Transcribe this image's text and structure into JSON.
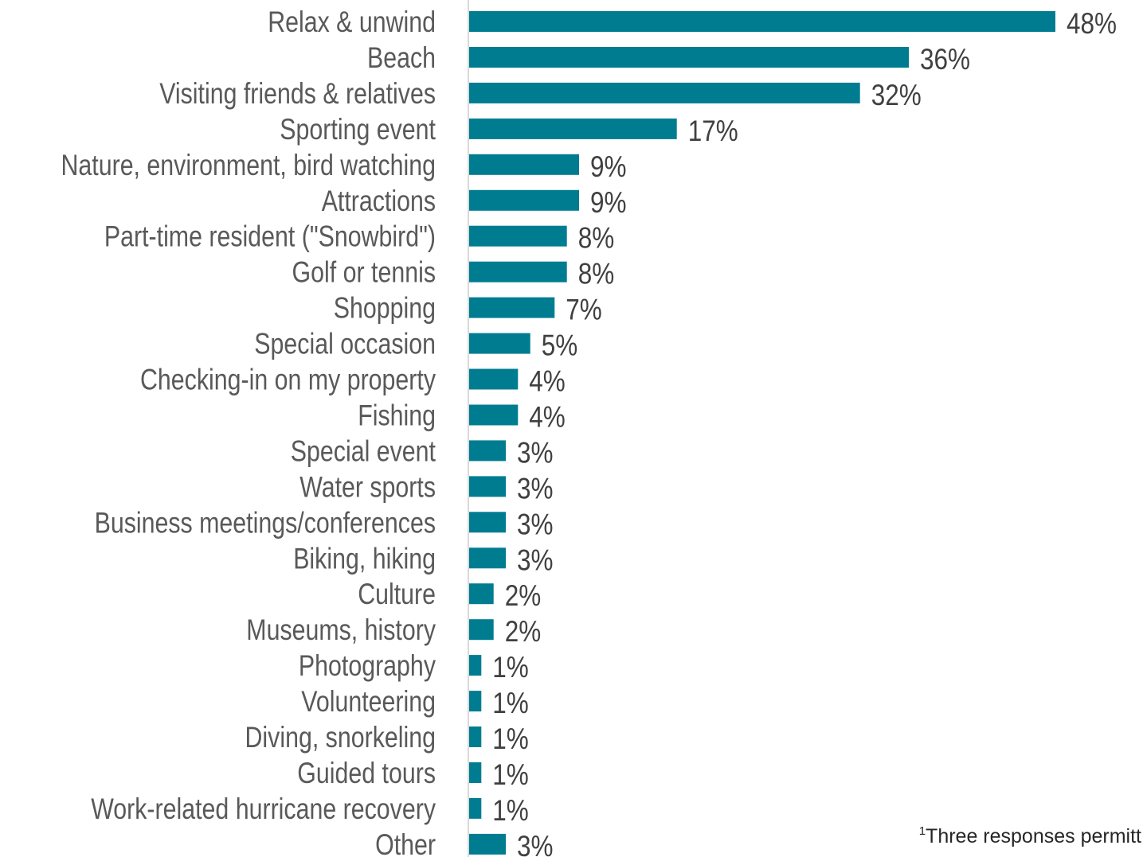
{
  "chart_data": {
    "type": "bar",
    "orientation": "horizontal",
    "categories": [
      "Relax & unwind",
      "Beach",
      "Visiting friends & relatives",
      "Sporting event",
      "Nature, environment, bird watching",
      "Attractions",
      "Part-time resident (\"Snowbird\")",
      "Golf or tennis",
      "Shopping",
      "Special occasion",
      "Checking-in on my property",
      "Fishing",
      "Special event",
      "Water sports",
      "Business meetings/conferences",
      "Biking, hiking",
      "Culture",
      "Museums, history",
      "Photography",
      "Volunteering",
      "Diving, snorkeling",
      "Guided tours",
      "Work-related hurricane recovery",
      "Other"
    ],
    "values": [
      48,
      36,
      32,
      17,
      9,
      9,
      8,
      8,
      7,
      5,
      4,
      4,
      3,
      3,
      3,
      3,
      2,
      2,
      1,
      1,
      1,
      1,
      1,
      3
    ],
    "value_suffix": "%",
    "bar_color": "#007C91",
    "axis_color": "#D9D9D9",
    "xlim": [
      0,
      48
    ],
    "grid": false,
    "legend": "none"
  },
  "footnote": {
    "marker": "1",
    "text": "Three responses permitt"
  }
}
